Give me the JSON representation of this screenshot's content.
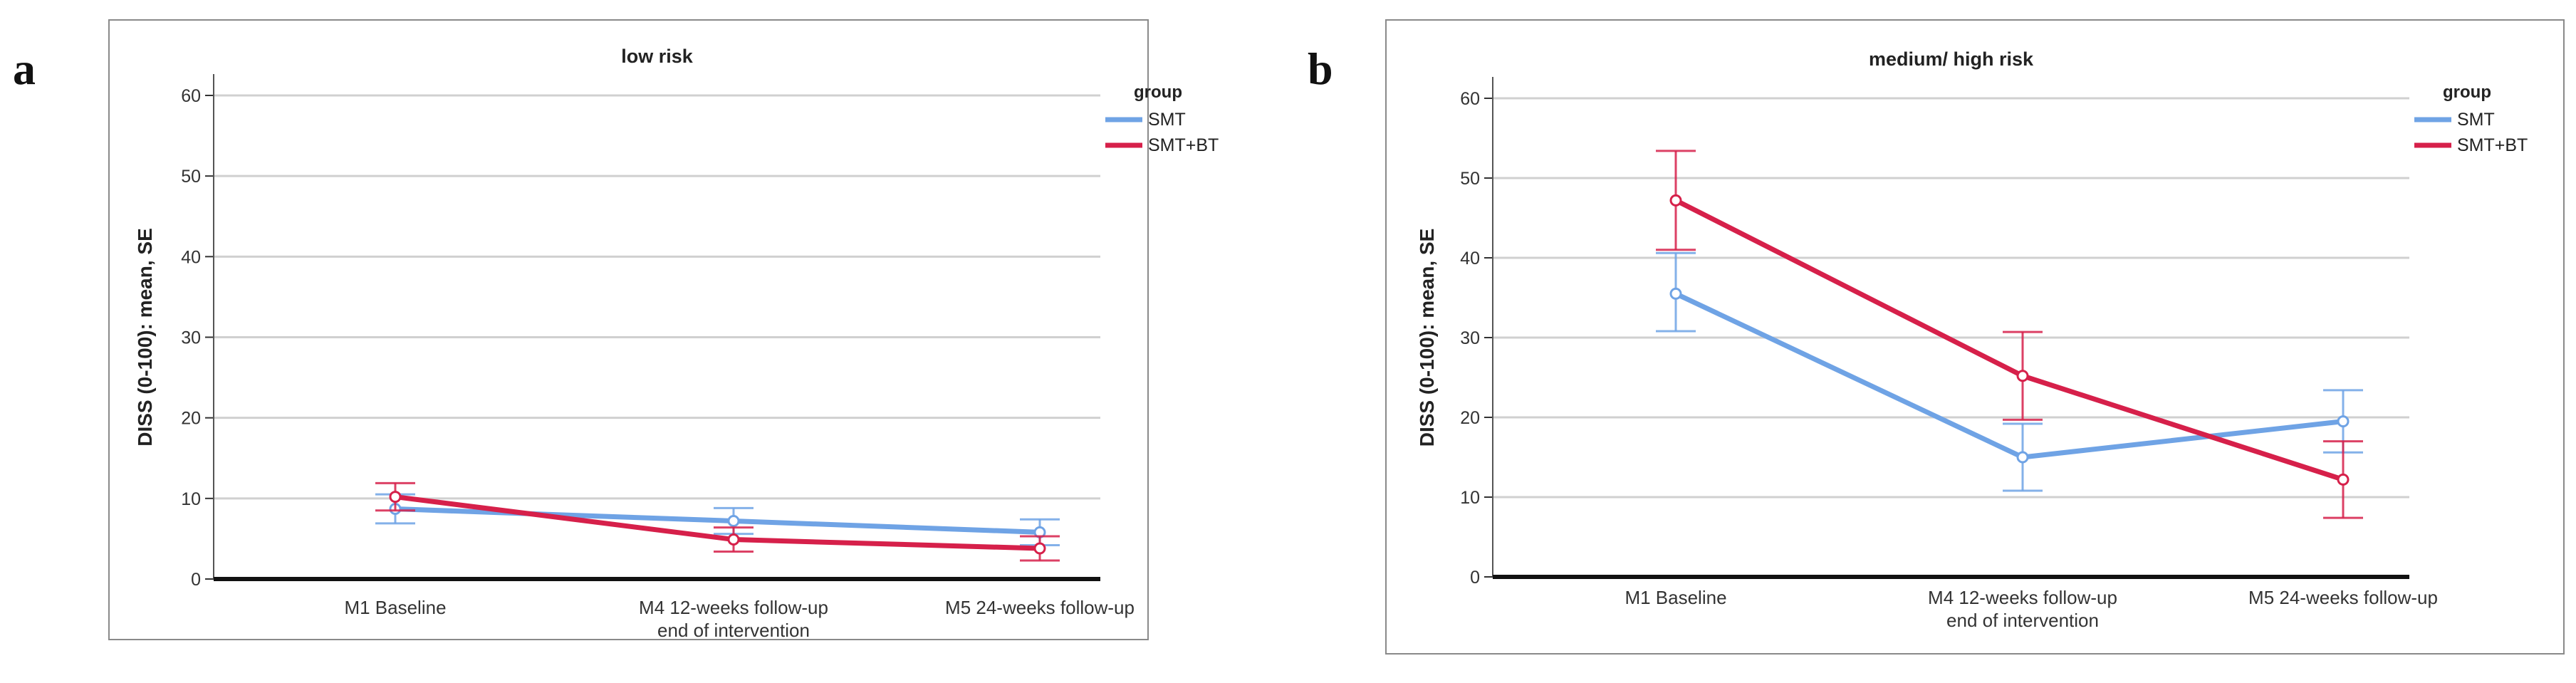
{
  "chart_data": [
    {
      "panel": "a",
      "type": "line",
      "title": "low risk",
      "ylabel": "DISS (0-100): mean, SE",
      "xlabel": "",
      "ylim": [
        0,
        60
      ],
      "yticks": [
        0,
        10,
        20,
        30,
        40,
        50,
        60
      ],
      "grid": true,
      "categories": [
        [
          "M1 Baseline"
        ],
        [
          "M4 12-weeks follow-up",
          "end of intervention"
        ],
        [
          "M5 24-weeks follow-up"
        ]
      ],
      "legend": {
        "title": "group",
        "placement": "top-right"
      },
      "series": [
        {
          "name": "SMT",
          "color": "#6fa3e5",
          "values": [
            8.7,
            7.2,
            5.8
          ],
          "lower": [
            6.9,
            5.6,
            4.2
          ],
          "upper": [
            10.5,
            8.8,
            7.4
          ]
        },
        {
          "name": "SMT+BT",
          "color": "#d6204a",
          "values": [
            10.2,
            4.9,
            3.8
          ],
          "lower": [
            8.5,
            3.4,
            2.3
          ],
          "upper": [
            11.9,
            6.4,
            5.3
          ]
        }
      ]
    },
    {
      "panel": "b",
      "type": "line",
      "title": "medium/ high risk",
      "ylabel": "DISS (0-100): mean, SE",
      "xlabel": "",
      "ylim": [
        0,
        60
      ],
      "yticks": [
        0,
        10,
        20,
        30,
        40,
        50,
        60
      ],
      "grid": true,
      "categories": [
        [
          "M1 Baseline"
        ],
        [
          "M4 12-weeks follow-up",
          "end of intervention"
        ],
        [
          "M5 24-weeks follow-up"
        ]
      ],
      "legend": {
        "title": "group",
        "placement": "top-right"
      },
      "series": [
        {
          "name": "SMT",
          "color": "#6fa3e5",
          "values": [
            35.5,
            15.0,
            19.5
          ],
          "lower": [
            30.8,
            10.8,
            15.6
          ],
          "upper": [
            40.6,
            19.2,
            23.4
          ]
        },
        {
          "name": "SMT+BT",
          "color": "#d6204a",
          "values": [
            47.2,
            25.2,
            12.2
          ],
          "lower": [
            41.0,
            19.7,
            7.4
          ],
          "upper": [
            53.4,
            30.7,
            17.0
          ]
        }
      ]
    }
  ]
}
